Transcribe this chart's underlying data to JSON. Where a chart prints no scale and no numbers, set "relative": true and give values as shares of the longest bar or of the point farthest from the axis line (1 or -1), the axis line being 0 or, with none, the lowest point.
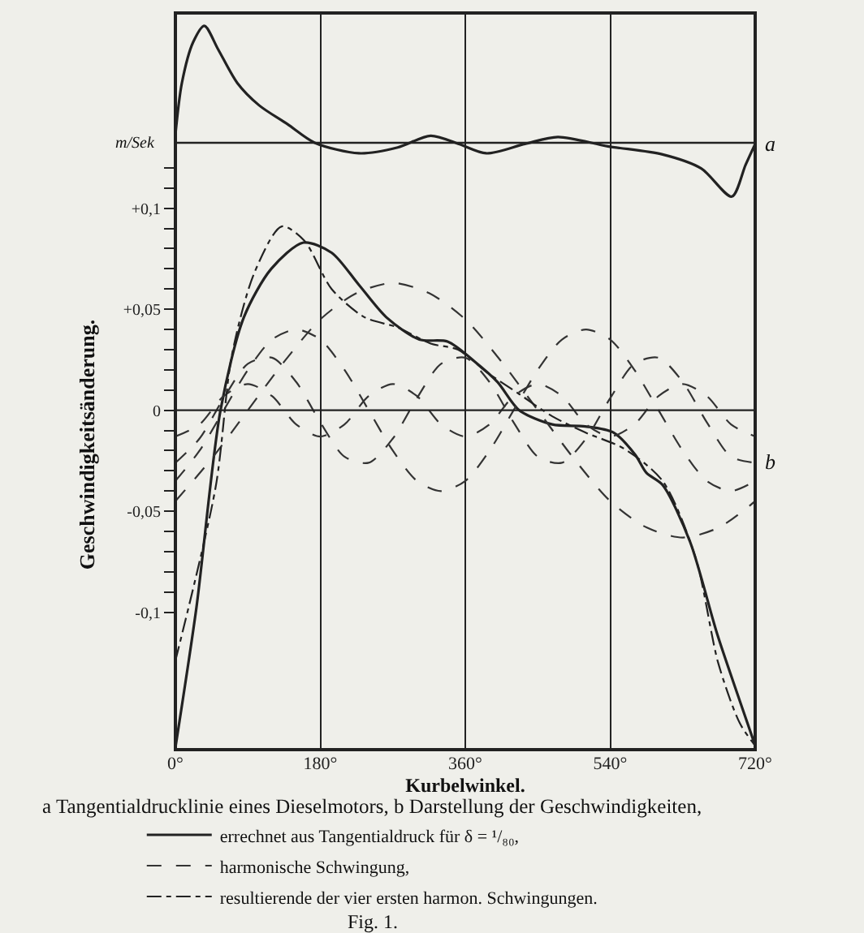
{
  "chart_data": [
    {
      "type": "line",
      "relative": true,
      "tick_labels": false,
      "grid": "x",
      "xlim": [
        0,
        720
      ],
      "xticks": [
        {
          "value": 180,
          "label": null
        },
        {
          "value": 360,
          "label": null
        },
        {
          "value": 540,
          "label": null
        }
      ],
      "x": [
        0,
        8,
        22,
        36,
        53,
        77,
        104,
        139,
        173,
        228,
        276,
        317,
        352,
        386,
        434,
        475,
        537,
        605,
        653,
        691,
        708,
        720
      ],
      "series": [
        {
          "color": "#222222",
          "line_style": "solid",
          "values": [
            0.07,
            0.51,
            0.86,
            1.0,
            0.8,
            0.51,
            0.32,
            0.16,
            0,
            -0.09,
            -0.04,
            0.06,
            -0.01,
            -0.09,
            -0.01,
            0.05,
            -0.03,
            -0.1,
            -0.22,
            -0.46,
            -0.19,
            -0.01
          ]
        }
      ],
      "ref_lines": [
        {
          "axis": "y",
          "value": 0,
          "color": "#222222"
        }
      ],
      "annotations": [
        "a"
      ]
    },
    {
      "type": "line",
      "xlabel": "Kurbelwinkel.",
      "ylabel": "Geschwindigkeitsänderung.",
      "grid": "x",
      "legend": "bottom",
      "xlim": [
        0,
        720
      ],
      "xticks": [
        {
          "value": 0,
          "label": "0°"
        },
        {
          "value": 180,
          "label": "180°"
        },
        {
          "value": 360,
          "label": "360°"
        },
        {
          "value": 540,
          "label": "540°"
        },
        {
          "value": 720,
          "label": "720°"
        }
      ],
      "ylim": [
        -0.168,
        0.134
      ],
      "yticks": [
        {
          "value": -0.1,
          "label": "-0,1"
        },
        {
          "value": -0.09,
          "label": null
        },
        {
          "value": -0.08,
          "label": null
        },
        {
          "value": -0.07,
          "label": null
        },
        {
          "value": -0.06,
          "label": null
        },
        {
          "value": -0.05,
          "label": "-0,05"
        },
        {
          "value": -0.04,
          "label": null
        },
        {
          "value": -0.03,
          "label": null
        },
        {
          "value": -0.02,
          "label": null
        },
        {
          "value": -0.01,
          "label": null
        },
        {
          "value": 0,
          "label": "0"
        },
        {
          "value": 0.01,
          "label": null
        },
        {
          "value": 0.02,
          "label": null
        },
        {
          "value": 0.03,
          "label": null
        },
        {
          "value": 0.04,
          "label": null
        },
        {
          "value": 0.05,
          "label": "+0,05"
        },
        {
          "value": 0.06,
          "label": null
        },
        {
          "value": 0.07,
          "label": null
        },
        {
          "value": 0.08,
          "label": null
        },
        {
          "value": 0.09,
          "label": null
        },
        {
          "value": 0.1,
          "label": "+0,1"
        },
        {
          "value": 0.11,
          "label": null
        },
        {
          "value": 0.12,
          "label": null
        }
      ],
      "series": [
        {
          "name": "errechnet aus Tangentialdruck für δ = ¹/₈₀,",
          "color": "#222222",
          "line_style": "solid",
          "x": [
            0,
            26,
            56,
            85,
            119,
            159,
            194,
            228,
            262,
            303,
            338,
            372,
            400,
            427,
            468,
            509,
            544,
            571,
            585,
            605,
            639,
            673,
            701,
            720
          ],
          "values": [
            -0.167,
            -0.098,
            0,
            0.046,
            0.07,
            0.083,
            0.078,
            0.062,
            0.046,
            0.035,
            0.034,
            0.024,
            0.014,
            0,
            -0.007,
            -0.008,
            -0.011,
            -0.022,
            -0.031,
            -0.037,
            -0.065,
            -0.111,
            -0.144,
            -0.166
          ]
        },
        {
          "name": "harmonische Schwingung,",
          "color": "#333333",
          "line_style": "dashed",
          "x": [
            0,
            45,
            90,
            135,
            180,
            225,
            270,
            315,
            360,
            405,
            450,
            495,
            540,
            585,
            630,
            675,
            720
          ],
          "values": [
            -0.045,
            -0.024,
            0,
            0.024,
            0.045,
            0.058,
            0.063,
            0.058,
            0.045,
            0.024,
            0,
            -0.024,
            -0.045,
            -0.058,
            -0.063,
            -0.058,
            -0.045
          ]
        },
        {
          "color": "#333333",
          "line_style": "dashed",
          "x": [
            0,
            30,
            60,
            90,
            120,
            150,
            180,
            210,
            240,
            270,
            300,
            330,
            360,
            390,
            420,
            450,
            480,
            510,
            540,
            570,
            600,
            630,
            660,
            690,
            720
          ],
          "values": [
            -0.035,
            -0.02,
            0,
            0.02,
            0.035,
            0.04,
            0.035,
            0.02,
            0,
            -0.02,
            -0.035,
            -0.04,
            -0.035,
            -0.02,
            0,
            0.02,
            0.035,
            0.04,
            0.035,
            0.02,
            0,
            -0.02,
            -0.035,
            -0.04,
            -0.035
          ]
        },
        {
          "color": "#333333",
          "line_style": "dashed",
          "x": [
            0,
            30,
            60,
            90,
            120,
            150,
            180,
            210,
            240,
            270,
            300,
            330,
            360,
            390,
            420,
            450,
            480,
            510,
            540,
            570,
            600,
            630,
            660,
            690,
            720
          ],
          "values": [
            -0.026,
            -0.014,
            0.006,
            0.023,
            0.026,
            0.014,
            -0.006,
            -0.023,
            -0.026,
            -0.014,
            0.006,
            0.023,
            0.026,
            0.014,
            -0.006,
            -0.023,
            -0.026,
            -0.014,
            0.006,
            0.023,
            0.026,
            0.014,
            -0.006,
            -0.023,
            -0.026
          ]
        },
        {
          "color": "#333333",
          "line_style": "dashed",
          "x": [
            0,
            30,
            60,
            90,
            120,
            150,
            180,
            210,
            240,
            270,
            300,
            330,
            360,
            390,
            420,
            450,
            480,
            510,
            540,
            570,
            600,
            630,
            660,
            690,
            720
          ],
          "values": [
            -0.013,
            -0.007,
            0.007,
            0.013,
            0.007,
            -0.007,
            -0.013,
            -0.007,
            0.007,
            0.013,
            0.007,
            -0.007,
            -0.013,
            -0.007,
            0.007,
            0.013,
            0.007,
            -0.007,
            -0.013,
            -0.007,
            0.007,
            0.013,
            0.007,
            -0.007,
            -0.013
          ]
        },
        {
          "name": "resultierende der vier ersten harmon. Schwingungen.",
          "color": "#222222",
          "line_style": "dashdot",
          "x": [
            0,
            50,
            70,
            98,
            132,
            160,
            194,
            235,
            276,
            317,
            351,
            386,
            427,
            468,
            509,
            557,
            605,
            646,
            674,
            701,
            720
          ],
          "values": [
            -0.124,
            -0.038,
            0.027,
            0.068,
            0.091,
            0.084,
            0.06,
            0.046,
            0.041,
            0.033,
            0.03,
            0.019,
            0.008,
            -0.003,
            -0.011,
            -0.019,
            -0.035,
            -0.073,
            -0.125,
            -0.155,
            -0.166
          ]
        }
      ],
      "ref_lines": [
        {
          "axis": "y",
          "value": 0,
          "color": "#222222"
        }
      ],
      "annotations": [
        "b",
        "m/Sek",
        "a Tangentialdrucklinie eines Dieselmotors, b Darstellung der Geschwindigkeiten,",
        "Fig. 1."
      ]
    }
  ]
}
